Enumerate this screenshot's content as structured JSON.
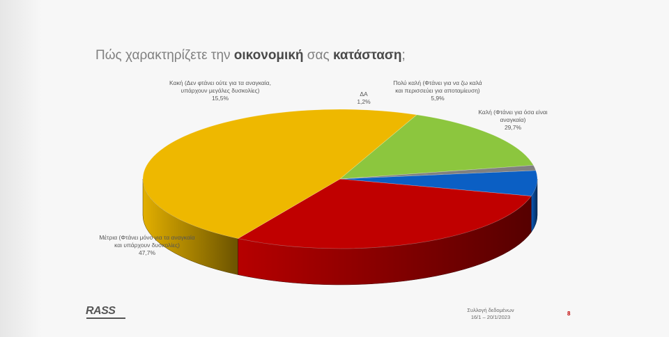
{
  "slide": {
    "title_prefix": "Πώς χαρακτηρίζετε την ",
    "title_bold1": "οικονομική",
    "title_mid": " σας ",
    "title_bold2": "κατάσταση",
    "title_suffix": ";",
    "footer_label": "Συλλογή δεδομένων",
    "footer_dates": "16/1 – 20/1/2023",
    "page_number": "8",
    "logo_text": "RASS"
  },
  "chart_data": {
    "type": "pie",
    "title": "Πώς χαρακτηρίζετε την οικονομική σας κατάσταση;",
    "slices": [
      {
        "name": "Πολύ καλή (Φτάνει για να ζω καλά και περισσεύει για αποταμίευση)",
        "label": "Πολύ καλή (Φτάνει για να ζω καλά και περισσεύει για αποταμίευση)",
        "value": 5.9,
        "display": "5,9%",
        "color": "#0b5fc4"
      },
      {
        "name": "Καλή (Φτάνει για όσα είναι αναγκαία)",
        "label": "Καλή (Φτάνει για όσα είναι αναγκαία)",
        "value": 29.7,
        "display": "29,7%",
        "color": "#c00000"
      },
      {
        "name": "Μέτρια (Φτάνει μόνο για τα αναγκαία και υπάρχουν δυσκολίες)",
        "label": "Μέτρια (Φτάνει μόνο για τα αναγκαία και υπάρχουν δυσκολίες)",
        "value": 47.7,
        "display": "47,7%",
        "color": "#eeb800"
      },
      {
        "name": "Κακή (Δεν φτάνει ούτε για τα αναγκαία, υπάρχουν μεγάλες δυσκολίες)",
        "label": "Κακή (Δεν φτάνει ούτε για τα αναγκαία, υπάρχουν μεγάλες δυσκολίες)",
        "value": 15.5,
        "display": "15,5%",
        "color": "#8cc63e"
      },
      {
        "name": "ΔΑ",
        "label": "ΔΑ",
        "value": 1.2,
        "display": "1,2%",
        "color": "#808080"
      }
    ],
    "legend": "none"
  }
}
